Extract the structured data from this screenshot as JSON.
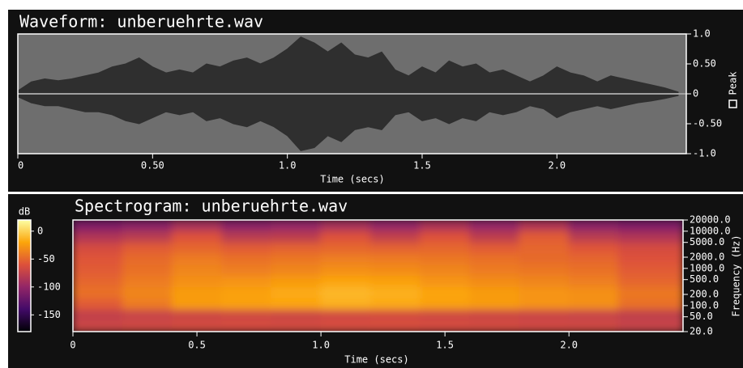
{
  "chart_data": [
    {
      "type": "waveform",
      "title": "Waveform: unberuehrte.wav",
      "xlabel": "Time (secs)",
      "x": [
        0,
        0.05,
        0.1,
        0.15,
        0.2,
        0.25,
        0.3,
        0.35,
        0.4,
        0.45,
        0.5,
        0.55,
        0.6,
        0.65,
        0.7,
        0.75,
        0.8,
        0.85,
        0.9,
        0.95,
        1.0,
        1.05,
        1.1,
        1.15,
        1.2,
        1.25,
        1.3,
        1.35,
        1.4,
        1.45,
        1.5,
        1.55,
        1.6,
        1.65,
        1.7,
        1.75,
        1.8,
        1.85,
        1.9,
        1.95,
        2.0,
        2.05,
        2.1,
        2.15,
        2.2,
        2.25,
        2.3,
        2.35,
        2.4,
        2.45
      ],
      "series": [
        {
          "name": "Peak",
          "color": "#2f2f2f",
          "values": [
            0.05,
            0.2,
            0.25,
            0.22,
            0.25,
            0.3,
            0.35,
            0.45,
            0.5,
            0.6,
            0.45,
            0.35,
            0.4,
            0.35,
            0.5,
            0.45,
            0.55,
            0.6,
            0.5,
            0.6,
            0.75,
            0.95,
            0.85,
            0.7,
            0.85,
            0.65,
            0.6,
            0.7,
            0.4,
            0.3,
            0.45,
            0.35,
            0.55,
            0.45,
            0.5,
            0.35,
            0.4,
            0.3,
            0.2,
            0.3,
            0.45,
            0.35,
            0.3,
            0.2,
            0.3,
            0.25,
            0.2,
            0.15,
            0.1,
            0.03
          ],
          "min_values": [
            -0.05,
            -0.15,
            -0.2,
            -0.2,
            -0.25,
            -0.3,
            -0.3,
            -0.35,
            -0.45,
            -0.5,
            -0.4,
            -0.3,
            -0.35,
            -0.3,
            -0.45,
            -0.4,
            -0.5,
            -0.55,
            -0.45,
            -0.55,
            -0.7,
            -0.95,
            -0.9,
            -0.7,
            -0.8,
            -0.6,
            -0.55,
            -0.6,
            -0.35,
            -0.3,
            -0.45,
            -0.4,
            -0.5,
            -0.4,
            -0.45,
            -0.3,
            -0.35,
            -0.3,
            -0.2,
            -0.25,
            -0.4,
            -0.3,
            -0.25,
            -0.2,
            -0.25,
            -0.2,
            -0.15,
            -0.12,
            -0.08,
            -0.03
          ]
        }
      ],
      "xlim": [
        0,
        2.48
      ],
      "xticks": [
        0,
        {
          "value": 0.5,
          "label": "0.50"
        },
        {
          "value": 1,
          "label": "1.0"
        },
        1.5,
        {
          "value": 2,
          "label": "2.0"
        }
      ],
      "ylim": [
        -1,
        1
      ],
      "yticks": [
        {
          "value": 1,
          "label": "1.0"
        },
        {
          "value": 0.5,
          "label": "0.50"
        },
        0,
        {
          "value": -0.5,
          "label": "-0.50"
        },
        {
          "value": -1,
          "label": "-1.0"
        }
      ],
      "background": "#6e6e6e",
      "zero_line_color": "#a0a0a0"
    },
    {
      "type": "heatmap",
      "title": "Spectrogram: unberuehrte.wav",
      "xlabel": "Time (secs)",
      "ylabel": "Frequency (Hz)",
      "colorbar_label": "dB",
      "x_bins": [
        0,
        0.2,
        0.4,
        0.6,
        0.8,
        1.0,
        1.2,
        1.4,
        1.6,
        1.8,
        2.0,
        2.2,
        2.46
      ],
      "y_bins": [
        20,
        40,
        80,
        160,
        320,
        640,
        1280,
        2560,
        5120,
        10240,
        20000
      ],
      "z": [
        [
          -70,
          -68,
          -66,
          -65,
          -66,
          -64,
          -63,
          -65,
          -66,
          -67,
          -68,
          -72
        ],
        [
          -75,
          -72,
          -70,
          -68,
          -70,
          -67,
          -66,
          -68,
          -70,
          -71,
          -72,
          -76
        ],
        [
          -55,
          -40,
          -25,
          -22,
          -20,
          -15,
          -18,
          -22,
          -25,
          -28,
          -30,
          -45
        ],
        [
          -45,
          -35,
          -25,
          -22,
          -18,
          -12,
          -15,
          -20,
          -25,
          -28,
          -30,
          -42
        ],
        [
          -50,
          -40,
          -30,
          -28,
          -25,
          -20,
          -22,
          -28,
          -32,
          -35,
          -38,
          -50
        ],
        [
          -55,
          -45,
          -35,
          -38,
          -35,
          -30,
          -32,
          -35,
          -40,
          -42,
          -45,
          -55
        ],
        [
          -58,
          -48,
          -40,
          -45,
          -42,
          -38,
          -40,
          -42,
          -45,
          -48,
          -50,
          -60
        ],
        [
          -65,
          -55,
          -50,
          -55,
          -52,
          -50,
          -52,
          -50,
          -55,
          -50,
          -58,
          -65
        ],
        [
          -85,
          -80,
          -60,
          -80,
          -78,
          -60,
          -75,
          -60,
          -78,
          -55,
          -80,
          -85
        ],
        [
          -110,
          -105,
          -90,
          -105,
          -100,
          -90,
          -100,
          -88,
          -100,
          -85,
          -105,
          -110
        ]
      ],
      "xlim": [
        0,
        2.46
      ],
      "xticks": [
        0,
        0.5,
        {
          "value": 1,
          "label": "1.0"
        },
        1.5,
        {
          "value": 2,
          "label": "2.0"
        }
      ],
      "ylim": [
        20,
        20000
      ],
      "log_y": true,
      "yticks": [
        {
          "value": 20000,
          "label": "20000.0"
        },
        {
          "value": 10000,
          "label": "10000.0"
        },
        {
          "value": 5000,
          "label": "5000.0"
        },
        {
          "value": 2000,
          "label": "2000.0"
        },
        {
          "value": 1000,
          "label": "1000.0"
        },
        {
          "value": 500,
          "label": "500.0"
        },
        {
          "value": 200,
          "label": "200.0"
        },
        {
          "value": 100,
          "label": "100.0"
        },
        {
          "value": 50,
          "label": "50.0"
        },
        {
          "value": 20,
          "label": "20.0"
        }
      ],
      "clim": [
        -180,
        20
      ],
      "cticks": [
        0,
        -50,
        -100,
        -150
      ],
      "colormap": [
        "#000004",
        "#420a68",
        "#932667",
        "#dd513a",
        "#fca50a",
        "#fcffa4"
      ]
    }
  ]
}
